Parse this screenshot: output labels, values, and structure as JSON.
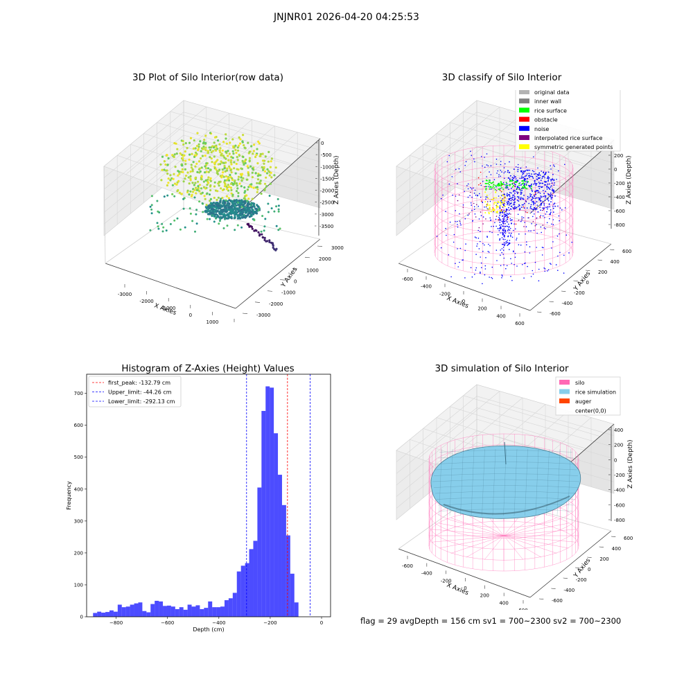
{
  "figure": {
    "title": "JNJNR01 2026-04-20 04:25:53",
    "footer": "flag = 29  avgDepth = 156 cm  sv1 = 700~2300  sv2 = 700~2300"
  },
  "plots": {
    "raw": {
      "title": "3D Plot of Silo Interior(row data)",
      "xlabel": "X Axies",
      "ylabel": "Y Axies",
      "zlabel": "Z Axies (Depth)",
      "xticks": [
        "-3000",
        "-2000",
        "-1000",
        "0",
        "1000",
        "2000"
      ],
      "yticks": [
        "-3000",
        "-2000",
        "-1000",
        "0",
        "1000",
        "2000",
        "3000"
      ],
      "zticks": [
        "0",
        "-500",
        "-1000",
        "-1500",
        "-2000",
        "-2500",
        "-3000",
        "-3500"
      ]
    },
    "classify": {
      "title": "3D classify of Silo Interior",
      "xlabel": "X Axies",
      "ylabel": "Y Axies",
      "zlabel": "Z Axies (Depth)",
      "xticks": [
        "-600",
        "-400",
        "-200",
        "0",
        "200",
        "400",
        "600"
      ],
      "yticks": [
        "-600",
        "-400",
        "-200",
        "0",
        "200",
        "400",
        "600"
      ],
      "zticks": [
        "200",
        "0",
        "-200",
        "-400",
        "-600",
        "-800"
      ],
      "legend": [
        {
          "label": "original data",
          "color": "#b3b3b3"
        },
        {
          "label": "inner wall",
          "color": "#808080"
        },
        {
          "label": "rice surface",
          "color": "#00ff00"
        },
        {
          "label": "obstacle",
          "color": "#ff0000"
        },
        {
          "label": "noise",
          "color": "#0000ff"
        },
        {
          "label": "interpolated rice surface",
          "color": "#800080"
        },
        {
          "label": "symmetric generated points",
          "color": "#ffff00"
        }
      ]
    },
    "simulation": {
      "title": "3D simulation of Silo Interior",
      "xlabel": "X Axies",
      "ylabel": "Y Axies",
      "zlabel": "Z Axies (Depth)",
      "xticks": [
        "-600",
        "-400",
        "-200",
        "0",
        "200",
        "400",
        "600"
      ],
      "yticks": [
        "-600",
        "-400",
        "-200",
        "0",
        "200",
        "400",
        "600"
      ],
      "zticks": [
        "400",
        "200",
        "0",
        "-200",
        "-400",
        "-600",
        "-800"
      ],
      "legend": [
        {
          "label": "silo",
          "color": "#ff69b4"
        },
        {
          "label": "rice simulation",
          "color": "#87ceeb"
        },
        {
          "label": "auger",
          "color": "#ff4500"
        },
        {
          "label": "center(0,0)",
          "color": ""
        }
      ]
    }
  },
  "chart_data": [
    {
      "type": "bar",
      "title": "Histogram of Z-Axies (Height) Values",
      "xlabel": "Depth (cm)",
      "ylabel": "Frequency",
      "xlim": [
        -915,
        35
      ],
      "ylim": [
        0,
        760
      ],
      "xticks": [
        -800,
        -600,
        -400,
        -200,
        0
      ],
      "yticks": [
        0,
        100,
        200,
        300,
        400,
        500,
        600,
        700
      ],
      "bar_color": "#0000ff",
      "bin_start": -890,
      "bin_width": 16,
      "values": [
        12,
        16,
        13,
        15,
        20,
        16,
        38,
        30,
        32,
        38,
        42,
        45,
        18,
        14,
        40,
        50,
        48,
        34,
        35,
        32,
        24,
        30,
        22,
        38,
        32,
        36,
        24,
        28,
        48,
        30,
        30,
        32,
        52,
        58,
        75,
        142,
        160,
        168,
        212,
        238,
        405,
        645,
        722,
        718,
        575,
        445,
        350,
        255,
        135,
        45
      ],
      "vlines": [
        {
          "label": "first_peak: -132.79 cm",
          "x": -132.79,
          "color": "#ff0000"
        },
        {
          "label": "Upper_limit: -44.26 cm",
          "x": -44.26,
          "color": "#0000ff"
        },
        {
          "label": "Lower_limit: -292.13 cm",
          "x": -292.13,
          "color": "#0000ff"
        }
      ]
    }
  ]
}
